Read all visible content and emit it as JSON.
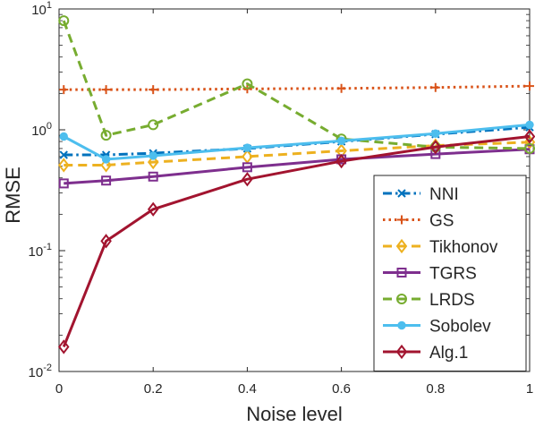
{
  "chart_data": {
    "type": "line",
    "xlabel": "Noise level",
    "ylabel": "RMSE",
    "xlim": [
      0,
      1
    ],
    "ylim": [
      0.01,
      10
    ],
    "yscale": "log",
    "xticks": [
      0,
      0.2,
      0.4,
      0.6,
      0.8,
      1
    ],
    "xtick_labels": [
      "0",
      "0.2",
      "0.4",
      "0.6",
      "0.8",
      "1"
    ],
    "yticks": [
      0.01,
      0.1,
      1,
      10
    ],
    "ytick_labels": [
      {
        "base": "10",
        "exp": "-2"
      },
      {
        "base": "10",
        "exp": "-1"
      },
      {
        "base": "10",
        "exp": "0"
      },
      {
        "base": "10",
        "exp": "1"
      }
    ],
    "grid": false,
    "legend_position": "bottom-right",
    "series": [
      {
        "name": "NNI",
        "color": "#0072BD",
        "dash": "dashdot",
        "marker": "x",
        "x": [
          0.01,
          0.1,
          0.2,
          0.4,
          0.6,
          0.8,
          1
        ],
        "y": [
          0.62,
          0.62,
          0.64,
          0.7,
          0.8,
          0.92,
          1.05
        ]
      },
      {
        "name": "GS",
        "color": "#D95319",
        "dash": "dotted",
        "marker": "plus",
        "x": [
          0.01,
          0.1,
          0.2,
          0.4,
          0.6,
          0.8,
          1
        ],
        "y": [
          2.15,
          2.15,
          2.15,
          2.18,
          2.2,
          2.24,
          2.3
        ]
      },
      {
        "name": "Tikhonov",
        "color": "#EDB120",
        "dash": "dashed",
        "marker": "diamond",
        "x": [
          0.01,
          0.1,
          0.2,
          0.4,
          0.6,
          0.8,
          1
        ],
        "y": [
          0.51,
          0.51,
          0.54,
          0.6,
          0.67,
          0.74,
          0.79
        ]
      },
      {
        "name": "TGRS",
        "color": "#7E2F8E",
        "dash": "solid",
        "marker": "square",
        "x": [
          0.01,
          0.1,
          0.2,
          0.4,
          0.6,
          0.8,
          1
        ],
        "y": [
          0.36,
          0.38,
          0.41,
          0.49,
          0.57,
          0.63,
          0.69
        ]
      },
      {
        "name": "LRDS",
        "color": "#77AC30",
        "dash": "dashed",
        "marker": "circle",
        "x": [
          0.01,
          0.1,
          0.2,
          0.4,
          0.6,
          0.8,
          1
        ],
        "y": [
          8.0,
          0.9,
          1.1,
          2.4,
          0.84,
          0.72,
          0.7
        ]
      },
      {
        "name": "Sobolev",
        "color": "#4DBEEE",
        "dash": "solid",
        "marker": "dot",
        "x": [
          0.01,
          0.1,
          0.2,
          0.4,
          0.6,
          0.8,
          1
        ],
        "y": [
          0.88,
          0.57,
          0.61,
          0.71,
          0.81,
          0.93,
          1.1
        ]
      },
      {
        "name": "Alg.1",
        "color": "#A2142F",
        "dash": "solid",
        "marker": "diamond",
        "x": [
          0.01,
          0.1,
          0.2,
          0.4,
          0.6,
          0.8,
          1
        ],
        "y": [
          0.016,
          0.12,
          0.22,
          0.39,
          0.55,
          0.72,
          0.88
        ]
      }
    ]
  }
}
